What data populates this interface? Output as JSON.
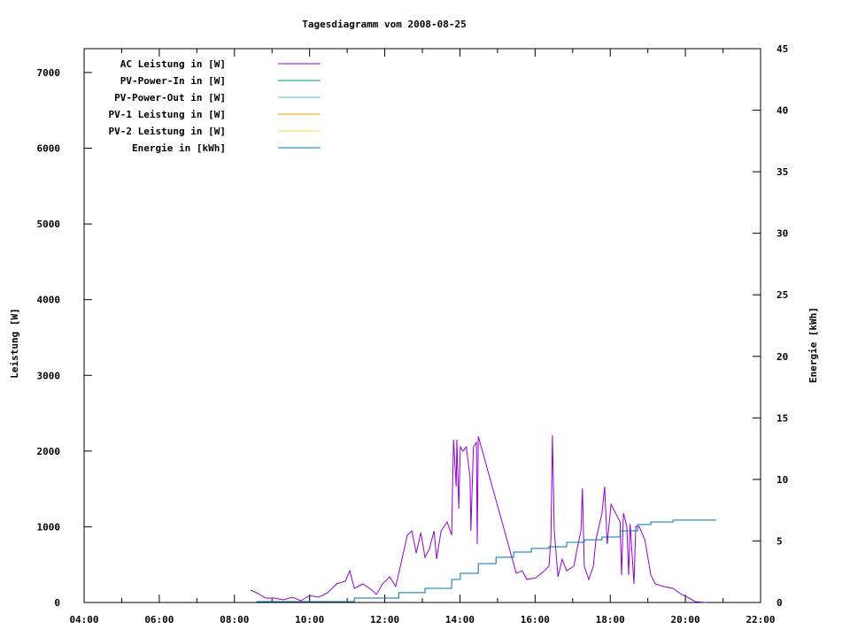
{
  "chart_data": {
    "type": "line",
    "title": "Tagesdiagramm vom 2008-08-25",
    "xlabel": "",
    "ylabel": "Leistung [W]",
    "y2label": "Energie [kWh]",
    "xlim": [
      4,
      22
    ],
    "ylim": [
      0,
      7315
    ],
    "y2lim": [
      0,
      45
    ],
    "x_tick_labels": [
      "04:00",
      "06:00",
      "08:00",
      "10:00",
      "12:00",
      "14:00",
      "16:00",
      "18:00",
      "20:00",
      "22:00"
    ],
    "y_tick_labels": [
      "0",
      "1000",
      "2000",
      "3000",
      "4000",
      "5000",
      "6000",
      "7000"
    ],
    "y2_tick_labels": [
      "0",
      "5",
      "10",
      "15",
      "20",
      "25",
      "30",
      "35",
      "40",
      "45"
    ],
    "grid": false,
    "legend_position": "top-left",
    "series": [
      {
        "name": "AC Leistung in [W]",
        "color": "#9400d3",
        "axis": "left",
        "x": [
          8.43,
          8.59,
          8.83,
          9.07,
          9.3,
          9.54,
          9.77,
          10.01,
          10.24,
          10.48,
          10.72,
          10.95,
          11.07,
          11.19,
          11.42,
          11.66,
          11.78,
          11.94,
          12.13,
          12.29,
          12.48,
          12.6,
          12.72,
          12.84,
          12.96,
          13.07,
          13.19,
          13.31,
          13.38,
          13.5,
          13.66,
          13.78,
          13.83,
          13.9,
          13.92,
          13.97,
          14.01,
          14.08,
          14.17,
          14.27,
          14.29,
          14.36,
          14.44,
          14.46,
          14.49,
          15.5,
          15.66,
          15.78,
          16.02,
          16.25,
          16.37,
          16.42,
          16.46,
          16.51,
          16.61,
          16.72,
          16.84,
          17.03,
          17.12,
          17.22,
          17.26,
          17.31,
          17.43,
          17.55,
          17.62,
          17.78,
          17.85,
          17.92,
          18.02,
          18.26,
          18.3,
          18.35,
          18.44,
          18.49,
          18.53,
          18.63,
          18.68,
          18.77,
          18.92,
          19.08,
          19.2,
          19.43,
          19.67,
          19.9,
          20.14,
          20.26,
          20.56
        ],
        "y": [
          164,
          128,
          58,
          58,
          35,
          70,
          23,
          93,
          70,
          128,
          245,
          280,
          420,
          187,
          245,
          164,
          105,
          245,
          339,
          210,
          619,
          888,
          946,
          654,
          923,
          596,
          713,
          946,
          572,
          946,
          1063,
          888,
          2150,
          1530,
          2150,
          1238,
          2056,
          1998,
          2056,
          1647,
          946,
          2056,
          2115,
          771,
          2196,
          385,
          420,
          304,
          327,
          420,
          479,
          829,
          2208,
          946,
          339,
          572,
          420,
          479,
          713,
          946,
          1507,
          479,
          304,
          479,
          829,
          1180,
          1530,
          771,
          1297,
          1063,
          362,
          1180,
          1005,
          362,
          1040,
          245,
          1005,
          1005,
          829,
          362,
          245,
          210,
          187,
          105,
          47,
          12,
          0
        ]
      },
      {
        "name": "PV-Power-In in [W]",
        "color": "#009e73",
        "axis": "left",
        "x": [],
        "y": []
      },
      {
        "name": "PV-Power-Out in [W]",
        "color": "#56b4e9",
        "axis": "left",
        "x": [],
        "y": []
      },
      {
        "name": "PV-1 Leistung in [W]",
        "color": "#e69f00",
        "axis": "left",
        "x": [],
        "y": []
      },
      {
        "name": "PV-2 Leistung in [W]",
        "color": "#f0e442",
        "axis": "left",
        "x": [],
        "y": []
      },
      {
        "name": "Energie in [kWh]",
        "color": "#0072b2",
        "axis": "right",
        "x": [
          8.59,
          11.19,
          12.37,
          13.07,
          13.78,
          14.01,
          14.49,
          14.96,
          15.43,
          15.9,
          16.37,
          16.84,
          17.31,
          17.78,
          18.26,
          18.73,
          19.08,
          19.67,
          20.8
        ],
        "y": [
          0.07,
          0.36,
          0.8,
          1.15,
          1.87,
          2.37,
          3.16,
          3.67,
          4.1,
          4.39,
          4.53,
          4.89,
          5.1,
          5.32,
          5.82,
          6.33,
          6.54,
          6.69,
          6.76
        ]
      }
    ]
  }
}
